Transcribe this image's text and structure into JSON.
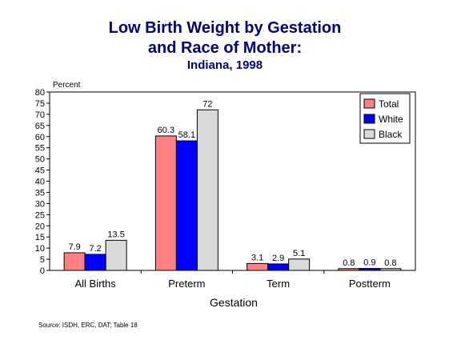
{
  "chart_data": {
    "type": "bar",
    "title_line1": "Low Birth Weight by Gestation",
    "title_line2": "and Race of Mother:",
    "subtitle": "Indiana, 1998",
    "xlabel": "Gestation",
    "ylabel": "Percent",
    "ylim": [
      0,
      80
    ],
    "yticks": [
      "0",
      "5",
      "10",
      "15",
      "20",
      "25",
      "30",
      "35",
      "40",
      "45",
      "50",
      "55",
      "60",
      "65",
      "70",
      "75",
      "80"
    ],
    "categories": [
      "All Births",
      "Preterm",
      "Term",
      "Postterm"
    ],
    "series": [
      {
        "name": "Total",
        "color": "#ff8080",
        "values": [
          7.9,
          60.3,
          3.1,
          0.8
        ],
        "labels": [
          "7.9",
          "60.3",
          "3.1",
          "0.8"
        ]
      },
      {
        "name": "White",
        "color": "#0000ff",
        "values": [
          7.2,
          58.1,
          2.9,
          0.9
        ],
        "labels": [
          "7.2",
          "58.1",
          "2.9",
          "0.9"
        ]
      },
      {
        "name": "Black",
        "color": "#d9d9d9",
        "values": [
          13.5,
          72,
          5.1,
          0.8
        ],
        "labels": [
          "13.5",
          "72",
          "5.1",
          "0.8"
        ]
      }
    ],
    "legend_position": "top-right",
    "grid": false
  },
  "source": "Source:  ISDH, ERC, DAT; Table 18"
}
